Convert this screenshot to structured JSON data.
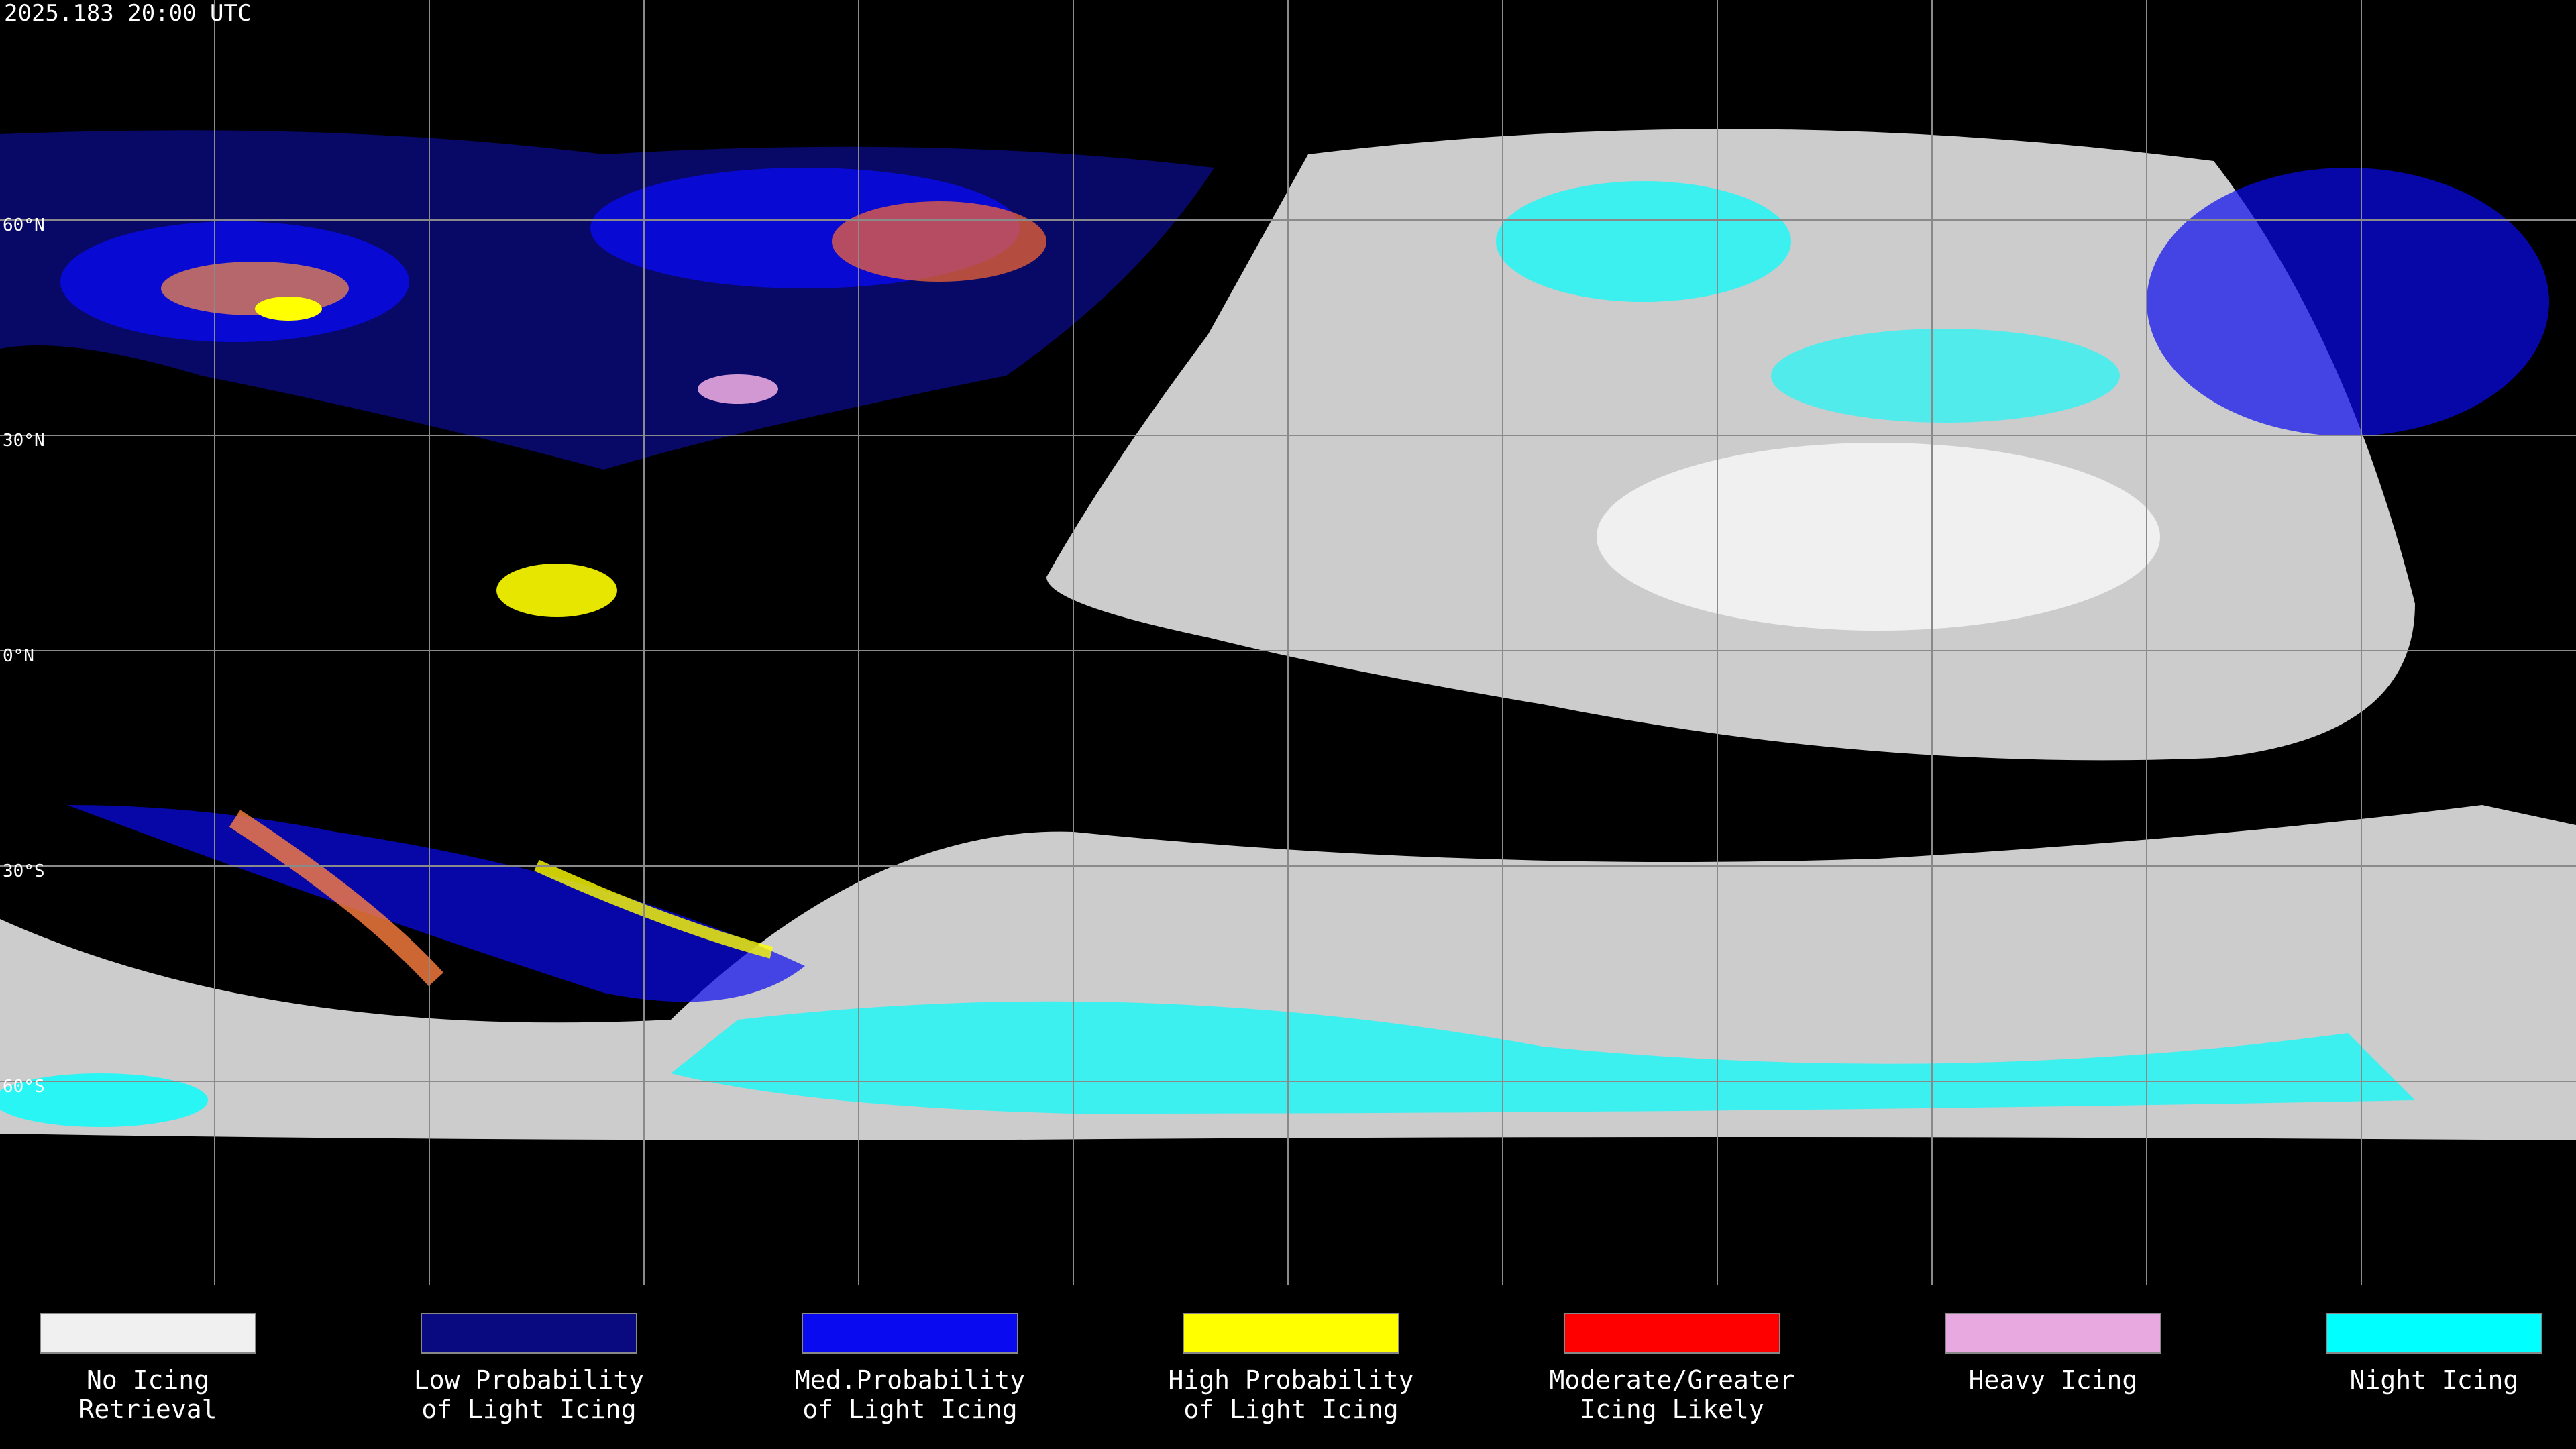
{
  "header": {
    "timestamp": "2025.183 20:00 UTC"
  },
  "map": {
    "latitude_labels": [
      "60°N",
      "30°N",
      "0°N",
      "30°S",
      "60°S"
    ]
  },
  "legend": {
    "items": [
      {
        "lines": [
          "No Icing",
          "Retrieval"
        ],
        "color": "#f0f0f0"
      },
      {
        "lines": [
          "Low Probability",
          "of Light Icing"
        ],
        "color": "#0a0a80"
      },
      {
        "lines": [
          "Med.Probability",
          "of Light Icing"
        ],
        "color": "#0a0af0"
      },
      {
        "lines": [
          "High Probability",
          "of Light Icing"
        ],
        "color": "#ffff00"
      },
      {
        "lines": [
          "Moderate/Greater",
          "Icing Likely"
        ],
        "color": "#ff0000"
      },
      {
        "lines": [
          "Heavy Icing"
        ],
        "color": "#e8a8e0"
      },
      {
        "lines": [
          "Night Icing"
        ],
        "color": "#00ffff"
      }
    ]
  }
}
